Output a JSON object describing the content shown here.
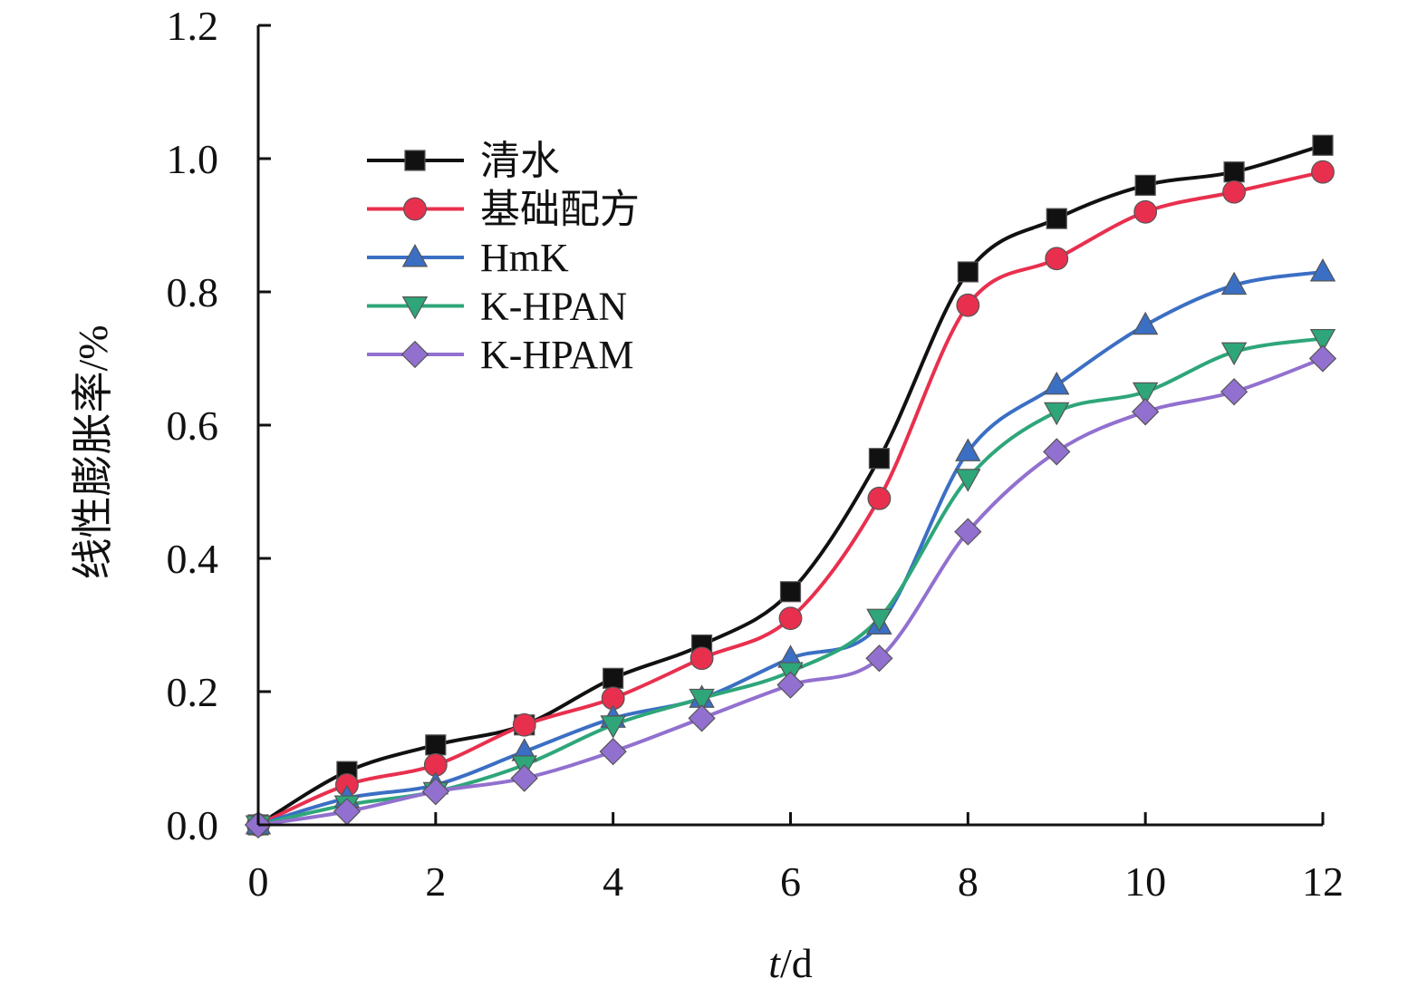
{
  "chart_data": {
    "type": "line",
    "title": "",
    "xlabel": "t/d",
    "xlabel_italic": "t",
    "xlabel_rest": "/d",
    "ylabel": "线性膨胀率/%",
    "x": [
      0,
      1,
      2,
      3,
      4,
      5,
      6,
      7,
      8,
      9,
      10,
      11,
      12
    ],
    "xlim": [
      0,
      12
    ],
    "ylim": [
      0,
      1.2
    ],
    "xticks": [
      0,
      2,
      4,
      6,
      8,
      10,
      12
    ],
    "xtick_labels": [
      "0",
      "2",
      "4",
      "6",
      "8",
      "10",
      "12"
    ],
    "yticks": [
      0,
      0.2,
      0.4,
      0.6,
      0.8,
      1.0,
      1.2
    ],
    "ytick_labels": [
      "0.0",
      "0.2",
      "0.4",
      "0.6",
      "0.8",
      "1.0",
      "1.2"
    ],
    "grid": false,
    "legend_position": "top-left",
    "series": [
      {
        "name": "清水",
        "color": "#111111",
        "marker": "square",
        "values": [
          0,
          0.08,
          0.12,
          0.15,
          0.22,
          0.27,
          0.35,
          0.55,
          0.83,
          0.91,
          0.96,
          0.98,
          1.02
        ]
      },
      {
        "name": "基础配方",
        "color": "#e8304e",
        "marker": "circle",
        "values": [
          0,
          0.06,
          0.09,
          0.15,
          0.19,
          0.25,
          0.31,
          0.49,
          0.78,
          0.85,
          0.92,
          0.95,
          0.98
        ]
      },
      {
        "name": "HmK",
        "color": "#3b6fc4",
        "marker": "triangle-up",
        "values": [
          0,
          0.04,
          0.06,
          0.11,
          0.16,
          0.19,
          0.25,
          0.3,
          0.56,
          0.66,
          0.75,
          0.81,
          0.83
        ]
      },
      {
        "name": "K-HPAN",
        "color": "#2ea67a",
        "marker": "triangle-down",
        "values": [
          0,
          0.03,
          0.05,
          0.09,
          0.15,
          0.19,
          0.23,
          0.31,
          0.52,
          0.62,
          0.65,
          0.71,
          0.73
        ]
      },
      {
        "name": "K-HPAM",
        "color": "#9270cf",
        "marker": "diamond",
        "values": [
          0,
          0.02,
          0.05,
          0.07,
          0.11,
          0.16,
          0.21,
          0.25,
          0.44,
          0.56,
          0.62,
          0.65,
          0.7
        ]
      }
    ]
  }
}
